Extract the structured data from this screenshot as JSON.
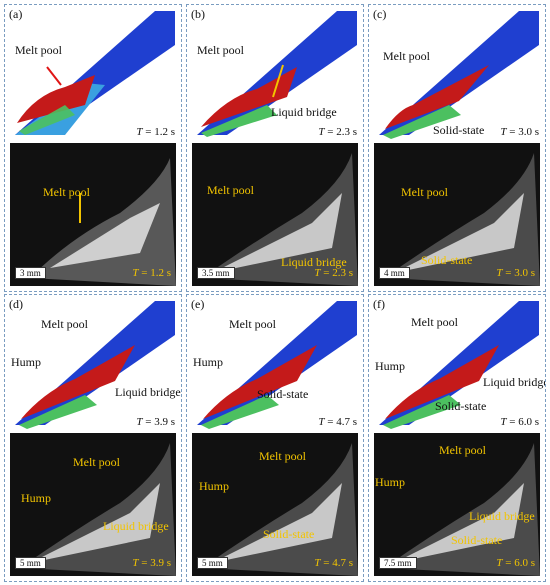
{
  "panels": [
    {
      "label": "(a)",
      "sim_time": "1.2 s",
      "photo_time": "1.2 s",
      "scale": "3 mm",
      "sim_labels": [
        "Melt pool"
      ],
      "photo_labels": [
        "Melt pool"
      ]
    },
    {
      "label": "(b)",
      "sim_time": "2.3 s",
      "photo_time": "2.3 s",
      "scale": "3.5 mm",
      "sim_labels": [
        "Melt pool",
        "Liquid bridge"
      ],
      "photo_labels": [
        "Melt pool",
        "Liquid bridge"
      ]
    },
    {
      "label": "(c)",
      "sim_time": "3.0 s",
      "photo_time": "3.0 s",
      "scale": "4 mm",
      "sim_labels": [
        "Melt pool",
        "Solid-state"
      ],
      "photo_labels": [
        "Melt pool",
        "Solid-state"
      ]
    },
    {
      "label": "(d)",
      "sim_time": "3.9 s",
      "photo_time": "3.9 s",
      "scale": "5 mm",
      "sim_labels": [
        "Melt pool",
        "Hump",
        "Liquid bridge"
      ],
      "photo_labels": [
        "Melt pool",
        "Hump",
        "Liquid bridge"
      ]
    },
    {
      "label": "(e)",
      "sim_time": "4.7 s",
      "photo_time": "4.7 s",
      "scale": "5 mm",
      "sim_labels": [
        "Melt pool",
        "Hump",
        "Solid-state"
      ],
      "photo_labels": [
        "Melt pool",
        "Hump",
        "Solid-state"
      ]
    },
    {
      "label": "(f)",
      "sim_time": "6.0 s",
      "photo_time": "6.0 s",
      "scale": "7.5 mm",
      "sim_labels": [
        "Melt pool",
        "Hump",
        "Liquid bridge",
        "Solid-state"
      ],
      "photo_labels": [
        "Melt pool",
        "Hump",
        "Liquid bridge",
        "Solid-state"
      ]
    }
  ],
  "time_symbol": "T",
  "colors": {
    "sim_blue": "#1f3fd0",
    "melt_red": "#c41a1a",
    "arrow_red": "#e01515",
    "arrow_yellow": "#f2c400",
    "arrow_blue": "#2f7fc8",
    "panel_border": "#7a9cc0"
  }
}
